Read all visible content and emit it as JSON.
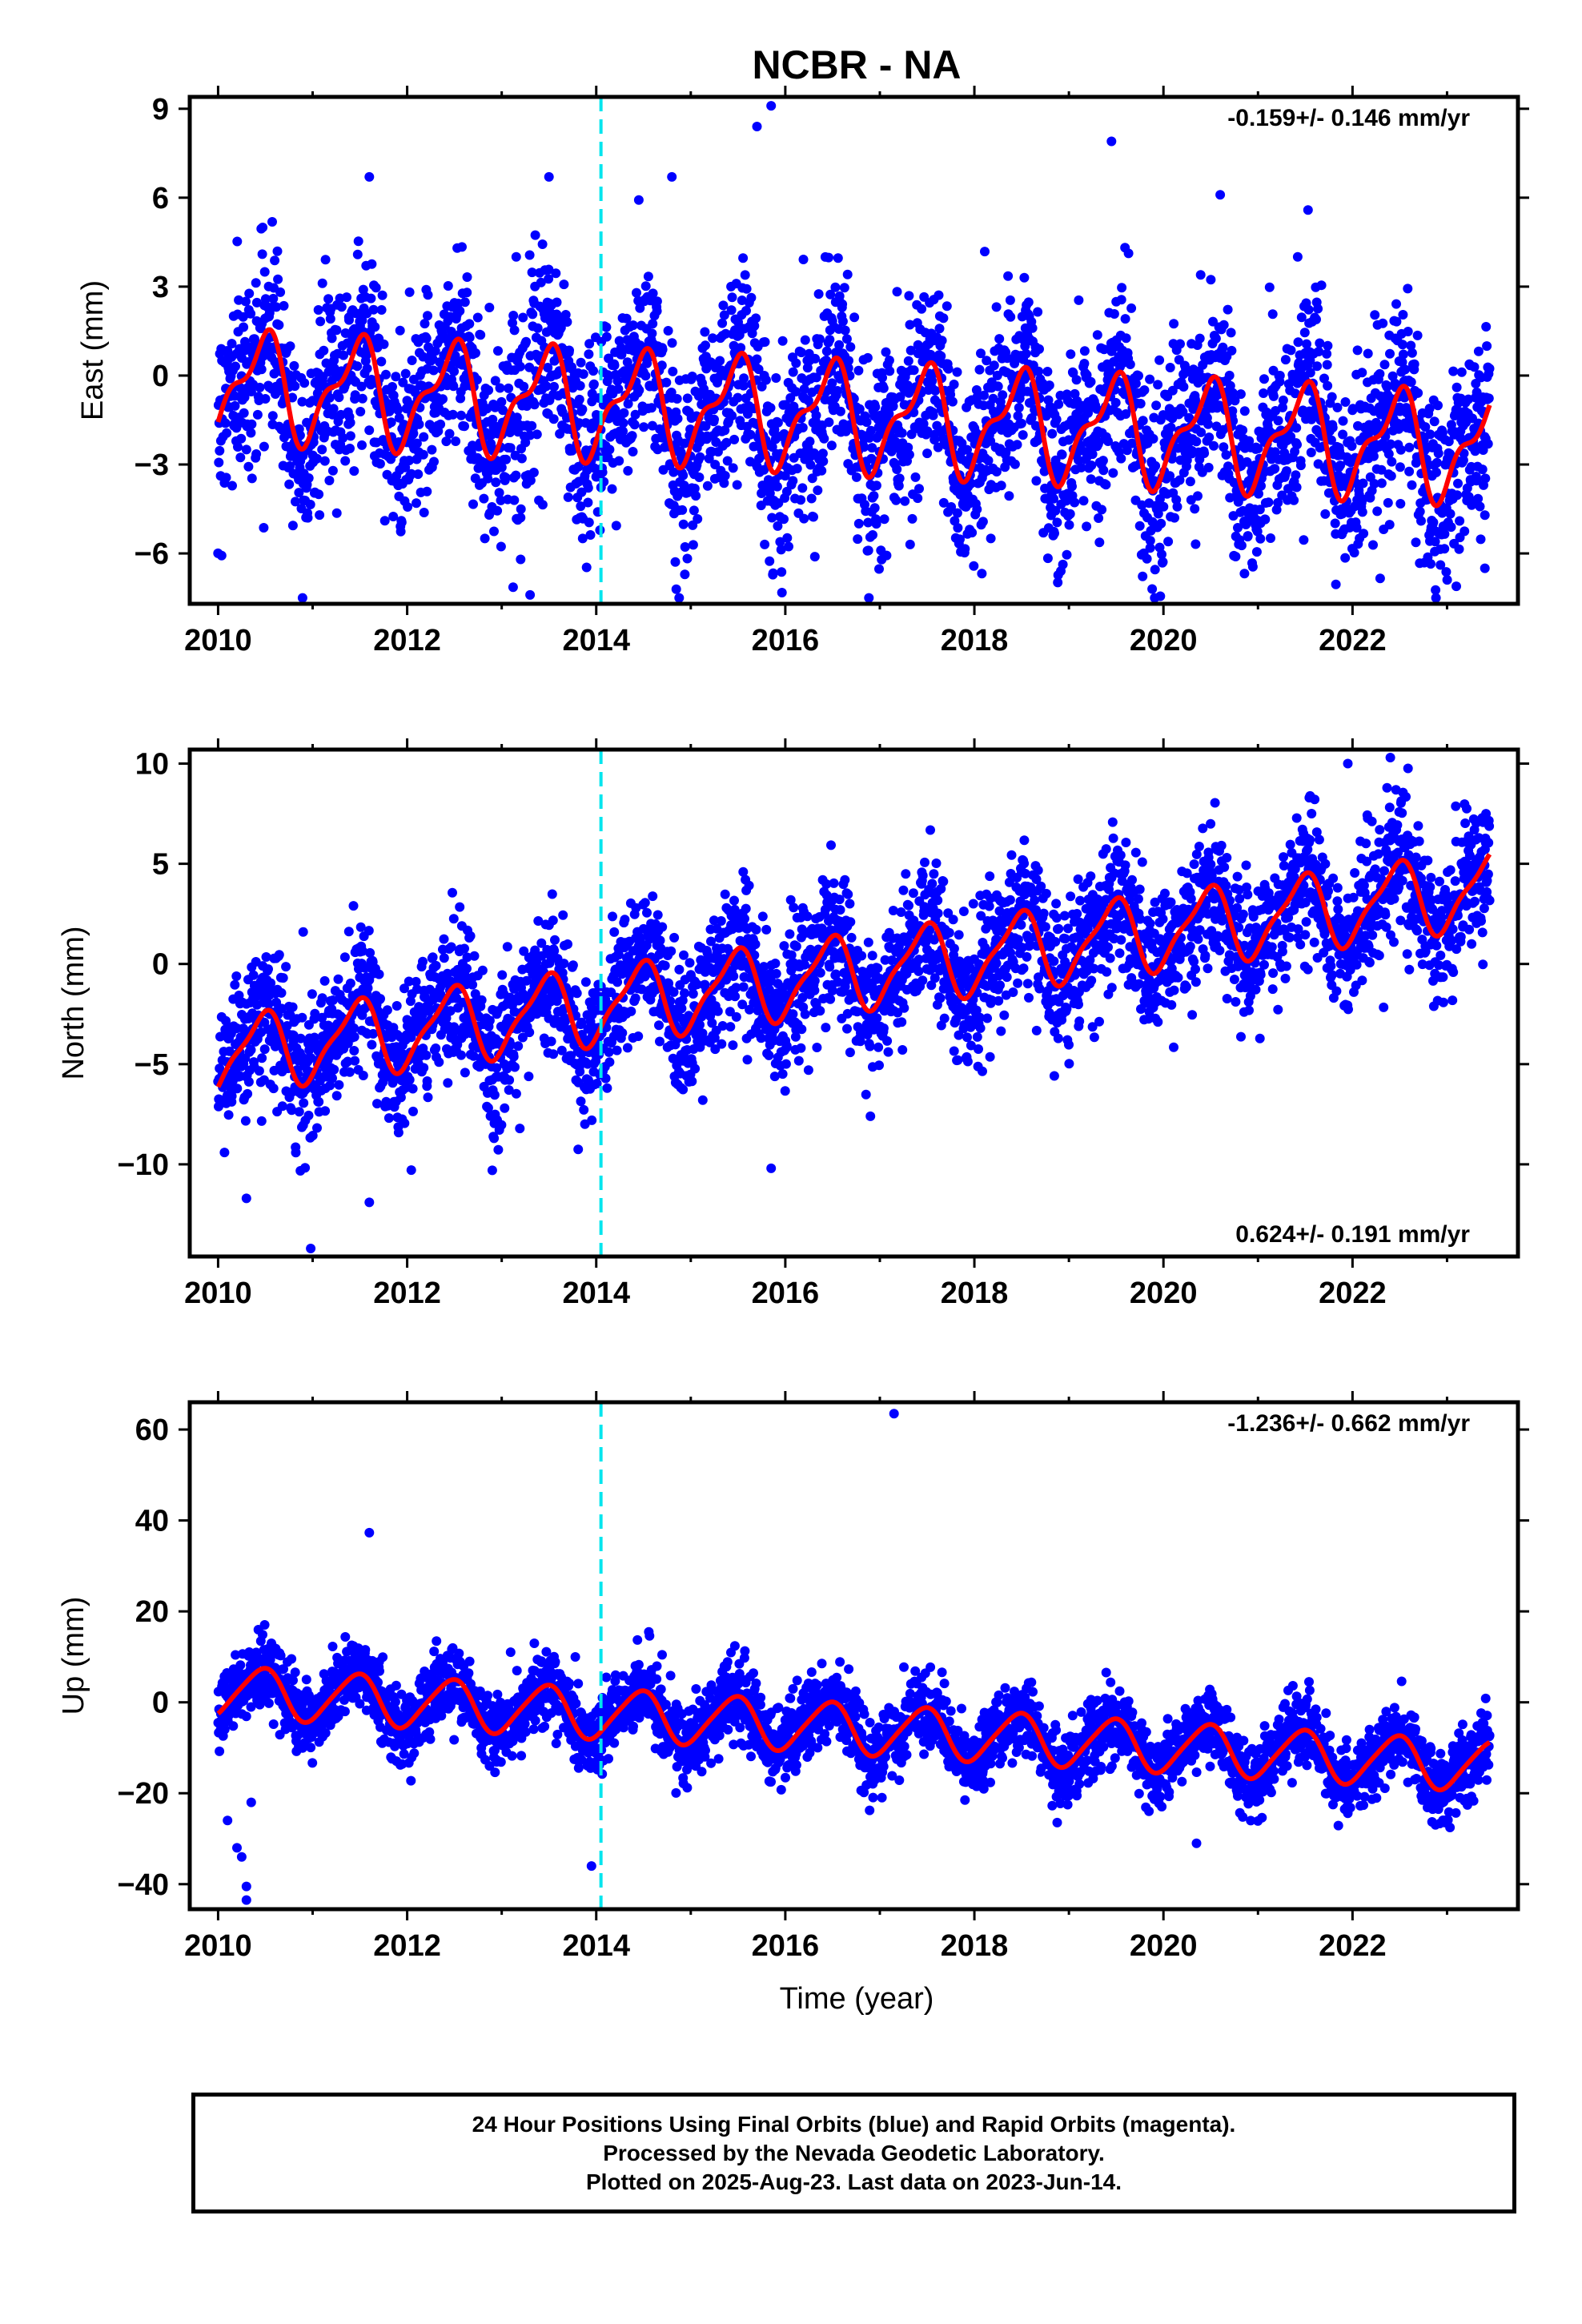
{
  "title": "NCBR - NA",
  "xlabel": "Time (year)",
  "footer": {
    "line1": "24 Hour Positions Using Final Orbits (blue) and Rapid Orbits (magenta).",
    "line2": "Processed by the Nevada Geodetic Laboratory.",
    "line3": "Plotted on 2025-Aug-23. Last data on 2023-Jun-14."
  },
  "colors": {
    "points": "#0000ff",
    "model": "#ff0000",
    "event_line": "#00e5ee"
  },
  "chart_data": [
    {
      "type": "scatter",
      "component": "east",
      "ylabel": "East (mm)",
      "rate_text": "-0.159+/- 0.146 mm/yr",
      "rate_position": "top-right",
      "xlim": [
        2009.7,
        2023.75
      ],
      "ylim": [
        -7.7,
        9.4
      ],
      "xticks": [
        2010,
        2012,
        2014,
        2016,
        2018,
        2020,
        2022
      ],
      "yticks": [
        -6,
        -3,
        0,
        3,
        6,
        9
      ],
      "event_x": 2014.05,
      "start_x": 2010.0,
      "end_x": 2023.45,
      "trend_mm_per_yr": -0.159,
      "offset": -0.3,
      "annual_amp": 1.6,
      "semiannual_amp": 0.7,
      "noise_sd": 1.6,
      "outliers": [
        [
          2015.7,
          8.4
        ],
        [
          2015.85,
          9.1
        ],
        [
          2019.45,
          7.9
        ],
        [
          2011.6,
          6.7
        ],
        [
          2014.8,
          6.7
        ],
        [
          2013.5,
          6.7
        ],
        [
          2013.3,
          -7.4
        ],
        [
          2013.2,
          -6.2
        ],
        [
          2023.4,
          -6.5
        ],
        [
          2020.6,
          6.1
        ]
      ],
      "grid": false
    },
    {
      "type": "scatter",
      "component": "north",
      "ylabel": "North (mm)",
      "rate_text": "0.624+/- 0.191 mm/yr",
      "rate_position": "bottom-right",
      "xlim": [
        2009.7,
        2023.75
      ],
      "ylim": [
        -14.6,
        10.7
      ],
      "xticks": [
        2010,
        2012,
        2014,
        2016,
        2018,
        2020,
        2022
      ],
      "yticks": [
        -10,
        -5,
        0,
        5,
        10
      ],
      "event_x": 2014.05,
      "start_x": 2010.0,
      "end_x": 2023.45,
      "trend_mm_per_yr": 0.624,
      "offset": -4.6,
      "annual_amp": 1.8,
      "semiannual_amp": 0.5,
      "noise_sd": 1.7,
      "outliers": [
        [
          2010.3,
          -11.7
        ],
        [
          2010.98,
          -14.2
        ],
        [
          2011.6,
          -11.9
        ],
        [
          2012.9,
          -10.3
        ],
        [
          2015.85,
          -10.2
        ],
        [
          2022.4,
          10.3
        ],
        [
          2021.95,
          10.0
        ],
        [
          2010.9,
          1.6
        ],
        [
          2016.9,
          -7.6
        ]
      ],
      "grid": false
    },
    {
      "type": "scatter",
      "component": "up",
      "ylabel": "Up (mm)",
      "rate_text": "-1.236+/- 0.662 mm/yr",
      "rate_position": "top-right",
      "xlim": [
        2009.7,
        2023.75
      ],
      "ylim": [
        -45.5,
        66
      ],
      "xticks": [
        2010,
        2012,
        2014,
        2016,
        2018,
        2020,
        2022
      ],
      "yticks": [
        -40,
        -20,
        0,
        20,
        40,
        60
      ],
      "event_x": 2014.05,
      "start_x": 2010.0,
      "end_x": 2023.45,
      "trend_mm_per_yr": -1.236,
      "offset": 2.5,
      "annual_amp": 5.5,
      "semiannual_amp": 0.8,
      "noise_sd": 4.0,
      "outliers": [
        [
          2017.15,
          63.5
        ],
        [
          2011.6,
          37.3
        ],
        [
          2010.3,
          -43.5
        ],
        [
          2010.3,
          -40.5
        ],
        [
          2010.25,
          -34
        ],
        [
          2010.2,
          -32
        ],
        [
          2013.95,
          -36
        ],
        [
          2010.1,
          -26
        ],
        [
          2020.35,
          -31
        ],
        [
          2010.35,
          -22
        ]
      ],
      "grid": false
    }
  ]
}
